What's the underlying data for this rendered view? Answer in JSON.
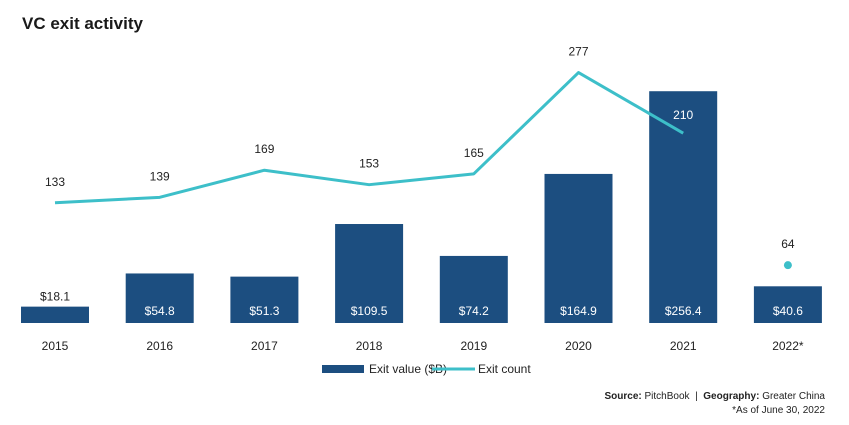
{
  "title": "VC exit activity",
  "chart_data": {
    "type": "bar+line",
    "title": "VC exit activity",
    "categories": [
      "2015",
      "2016",
      "2017",
      "2018",
      "2019",
      "2020",
      "2021",
      "2022*"
    ],
    "series": [
      {
        "name": "Exit value ($B)",
        "type": "bar",
        "color": "#1c4e80",
        "values": [
          18.1,
          54.8,
          51.3,
          109.5,
          74.2,
          164.9,
          256.4,
          40.6
        ],
        "labels": [
          "$18.1",
          "$54.8",
          "$51.3",
          "$109.5",
          "$74.2",
          "$164.9",
          "$256.4",
          "$40.6"
        ]
      },
      {
        "name": "Exit count",
        "type": "line",
        "color": "#3dbfc9",
        "values": [
          133,
          139,
          169,
          153,
          165,
          277,
          210,
          64
        ],
        "labels": [
          "133",
          "139",
          "169",
          "153",
          "165",
          "277",
          "210",
          "64"
        ],
        "note": "2022* shown as separate point"
      }
    ],
    "ylim": [
      0,
      280
    ],
    "grid": false,
    "legend": "bottom-center"
  },
  "source": {
    "label": "Source:",
    "value": "PitchBook",
    "sep": "|",
    "geo_label": "Geography:",
    "geo_value": "Greater China",
    "footnote": "*As of June 30, 2022"
  }
}
